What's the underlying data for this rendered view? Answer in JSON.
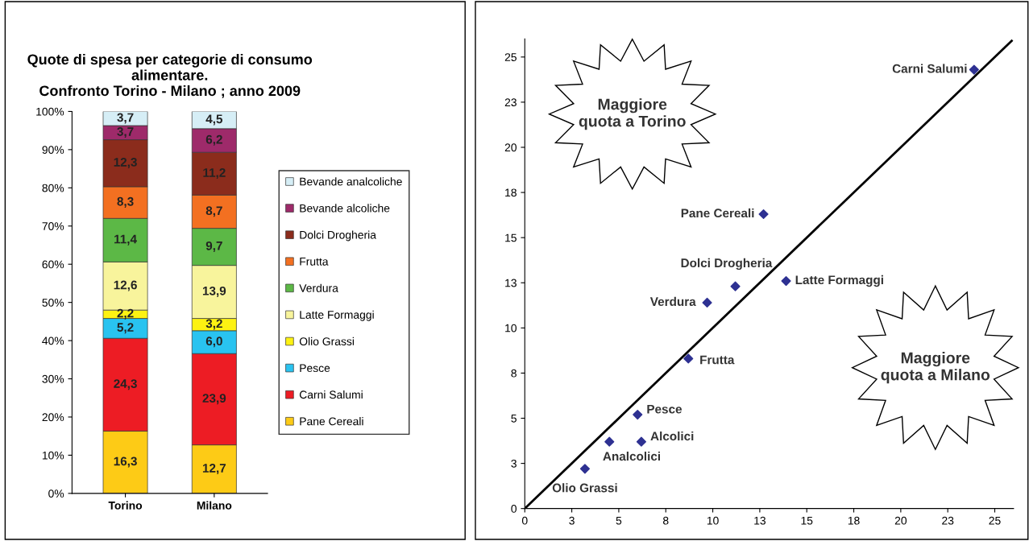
{
  "chart_data": [
    {
      "type": "bar",
      "title": "Quote di spesa per categorie di consumo\nalimentare.\nConfronto Torino - Milano ; anno 2009",
      "categories": [
        "Torino",
        "Milano"
      ],
      "stacked": true,
      "legend": "right",
      "data_labels": false,
      "ylim": [
        0,
        100
      ],
      "yticks": [
        {
          "value": 0,
          "label": "0%"
        },
        {
          "value": 10,
          "label": "10%"
        },
        {
          "value": 20,
          "label": "20%"
        },
        {
          "value": 30,
          "label": "30%"
        },
        {
          "value": 40,
          "label": "40%"
        },
        {
          "value": 50,
          "label": "50%"
        },
        {
          "value": 60,
          "label": "60%"
        },
        {
          "value": 70,
          "label": "70%"
        },
        {
          "value": 80,
          "label": "80%"
        },
        {
          "value": 90,
          "label": "90%"
        },
        {
          "value": 100,
          "label": "100%"
        }
      ],
      "series": [
        {
          "name": "Pane Cereali",
          "color": "#fdcb16",
          "values": [
            16.3,
            12.7
          ],
          "value_labels": [
            "16,3",
            "12,7"
          ]
        },
        {
          "name": "Carni Salumi",
          "color": "#ed1c24",
          "values": [
            24.3,
            23.9
          ],
          "value_labels": [
            "24,3",
            "23,9"
          ]
        },
        {
          "name": "Pesce",
          "color": "#29c3f0",
          "values": [
            5.2,
            6.0
          ],
          "value_labels": [
            "5,2",
            "6,0"
          ]
        },
        {
          "name": "Olio Grassi",
          "color": "#fdf212",
          "values": [
            2.2,
            3.2
          ],
          "value_labels": [
            "2,2",
            "3,2"
          ]
        },
        {
          "name": "Latte Formaggi",
          "color": "#f8f49c",
          "values": [
            12.6,
            13.9
          ],
          "value_labels": [
            "12,6",
            "13,9"
          ]
        },
        {
          "name": "Verdura",
          "color": "#5cb846",
          "values": [
            11.4,
            9.7
          ],
          "value_labels": [
            "11,4",
            "9,7"
          ]
        },
        {
          "name": "Frutta",
          "color": "#f37021",
          "values": [
            8.3,
            8.7
          ],
          "value_labels": [
            "8,3",
            "8,7"
          ]
        },
        {
          "name": "Dolci Drogheria",
          "color": "#8b2c1c",
          "values": [
            12.3,
            11.2
          ],
          "value_labels": [
            "12,3",
            "11,2"
          ]
        },
        {
          "name": "Bevande alcoliche",
          "color": "#9e2a6a",
          "values": [
            3.7,
            6.2
          ],
          "value_labels": [
            "3,7",
            "6,2"
          ]
        },
        {
          "name": "Bevande analcoliche",
          "color": "#d6eef6",
          "values": [
            3.7,
            4.5
          ],
          "value_labels": [
            "3,7",
            "4,5"
          ]
        }
      ]
    },
    {
      "type": "scatter",
      "marker": "diamond",
      "grid": false,
      "legend": false,
      "xlim": [
        0,
        26
      ],
      "ylim": [
        0,
        26
      ],
      "xticks": [
        0,
        {
          "value": 2.5,
          "label": "3"
        },
        5,
        {
          "value": 7.5,
          "label": "8"
        },
        10,
        {
          "value": 12.5,
          "label": "13"
        },
        15,
        {
          "value": 17.5,
          "label": "18"
        },
        20,
        {
          "value": 22.5,
          "label": "23"
        },
        25
      ],
      "yticks": [
        0,
        {
          "value": 2.5,
          "label": "3"
        },
        5,
        {
          "value": 7.5,
          "label": "8"
        },
        10,
        {
          "value": 12.5,
          "label": "13"
        },
        15,
        {
          "value": 17.5,
          "label": "18"
        },
        20,
        {
          "value": 22.5,
          "label": "23"
        },
        25
      ],
      "series": [
        {
          "type": "scatter",
          "color": "#2e3192",
          "x": [
            12.7,
            23.9,
            6.0,
            3.2,
            13.9,
            9.7,
            8.7,
            11.2,
            6.2,
            4.5
          ],
          "values": [
            16.3,
            24.3,
            5.2,
            2.2,
            12.6,
            11.4,
            8.3,
            12.3,
            3.7,
            3.7
          ]
        },
        {
          "type": "line",
          "color": "#000000",
          "marker": "none",
          "x": [
            0,
            25.9
          ],
          "values": [
            0,
            25.9
          ]
        }
      ],
      "annotations": [
        "Maggiore\nquota a Torino",
        "Maggiore\nquota a Milano",
        {
          "text": "Pane Cereali",
          "x": 12.7,
          "y": 16.3
        },
        {
          "text": "Carni Salumi",
          "x": 23.9,
          "y": 24.3
        },
        {
          "text": "Pesce",
          "x": 6.0,
          "y": 5.2
        },
        {
          "text": "Olio Grassi",
          "x": 3.2,
          "y": 2.2
        },
        {
          "text": "Latte Formaggi",
          "x": 13.9,
          "y": 12.6
        },
        {
          "text": "Verdura",
          "x": 9.7,
          "y": 11.4
        },
        {
          "text": "Frutta",
          "x": 8.7,
          "y": 8.3
        },
        {
          "text": "Dolci Drogheria",
          "x": 11.2,
          "y": 12.3
        },
        {
          "text": "Alcolici",
          "x": 6.2,
          "y": 3.7
        },
        {
          "text": "Analcolici",
          "x": 4.5,
          "y": 3.7
        }
      ]
    }
  ]
}
